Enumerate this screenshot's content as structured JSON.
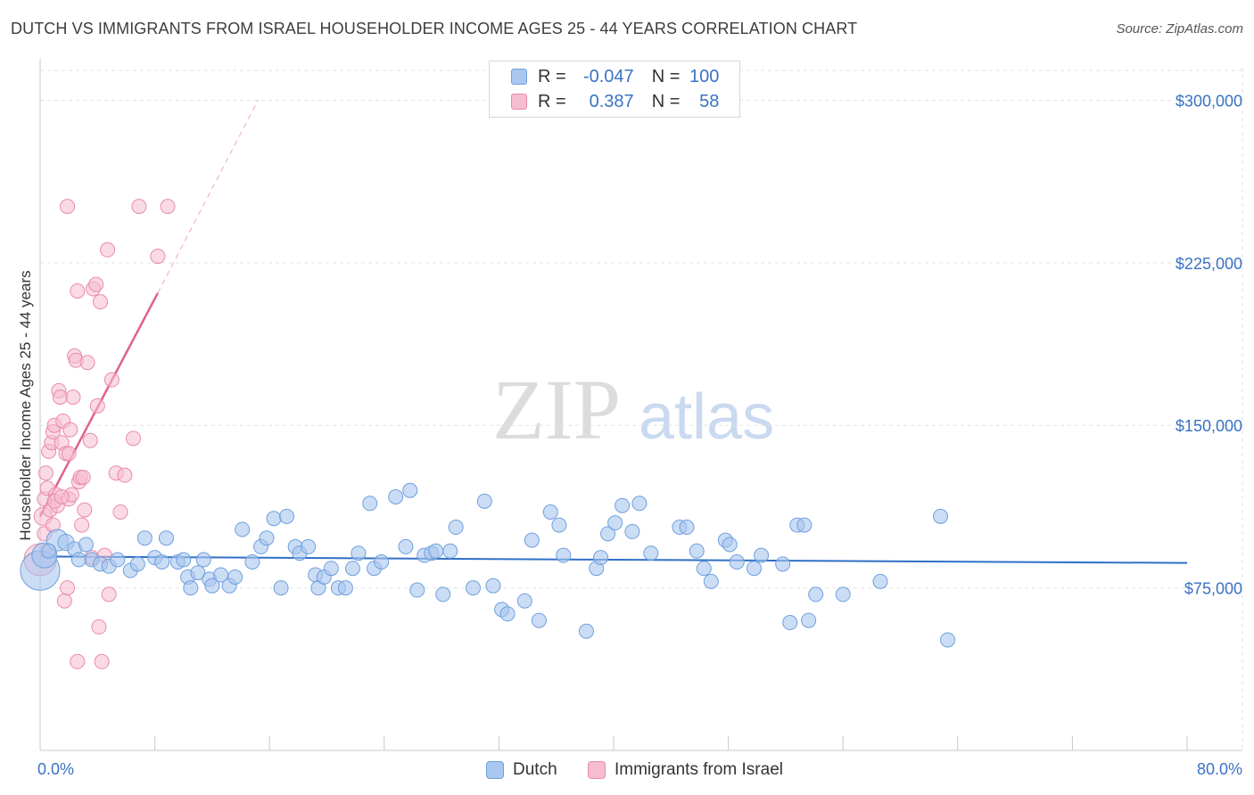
{
  "title": "DUTCH VS IMMIGRANTS FROM ISRAEL HOUSEHOLDER INCOME AGES 25 - 44 YEARS CORRELATION CHART",
  "source": "Source: ZipAtlas.com",
  "watermark": {
    "zip": "ZIP",
    "atlas": "atlas"
  },
  "legend": {
    "r_label": "R =",
    "n_label": "N =",
    "dutch": {
      "r": "-0.047",
      "n": "100"
    },
    "israel": {
      "r": "0.387",
      "n": "58"
    }
  },
  "colors": {
    "dutch_fill": "#a9c7ef",
    "dutch_stroke": "#6f9fde",
    "dutch_line": "#2f6fc6",
    "israel_fill": "#f6bcd0",
    "israel_stroke": "#e98bab",
    "israel_line": "#e0608f",
    "axis_text": "#3a72c4",
    "grid": "#e2e2e2"
  },
  "chart_data": {
    "type": "scatter",
    "title": "DUTCH VS IMMIGRANTS FROM ISRAEL HOUSEHOLDER INCOME AGES 25 - 44 YEARS CORRELATION CHART",
    "xlabel": "",
    "ylabel": "Householder Income Ages 25 - 44 years",
    "xlim": [
      0,
      80
    ],
    "ylim": [
      0,
      315000
    ],
    "x_tick_labels": [
      "0.0%",
      "80.0%"
    ],
    "y_ticks": [
      {
        "value": 75000,
        "label": "$75,000"
      },
      {
        "value": 150000,
        "label": "$150,000"
      },
      {
        "value": 225000,
        "label": "$225,000"
      },
      {
        "value": 300000,
        "label": "$300,000"
      }
    ],
    "series": [
      {
        "name": "Dutch",
        "r": -0.047,
        "n": 100,
        "trend": {
          "x": [
            0,
            80
          ],
          "y": [
            89500,
            86500
          ],
          "dashed_extension": false
        },
        "points": [
          [
            0.0,
            83000,
            22
          ],
          [
            0.3,
            90000,
            14
          ],
          [
            1.2,
            97000,
            12
          ],
          [
            1.8,
            96000,
            9
          ],
          [
            2.4,
            93000,
            8
          ],
          [
            3.2,
            95000,
            8
          ],
          [
            3.6,
            88000,
            8
          ],
          [
            4.2,
            86000,
            8
          ],
          [
            4.8,
            85000,
            8
          ],
          [
            5.4,
            88000,
            8
          ],
          [
            6.3,
            83000,
            8
          ],
          [
            6.8,
            86000,
            8
          ],
          [
            7.3,
            98000,
            8
          ],
          [
            8.0,
            89000,
            8
          ],
          [
            8.5,
            87000,
            8
          ],
          [
            8.8,
            98000,
            8
          ],
          [
            9.6,
            87000,
            8
          ],
          [
            10.0,
            88000,
            8
          ],
          [
            10.3,
            80000,
            8
          ],
          [
            10.5,
            75000,
            8
          ],
          [
            11.0,
            82000,
            8
          ],
          [
            11.4,
            88000,
            8
          ],
          [
            11.8,
            79000,
            8
          ],
          [
            12.0,
            76000,
            8
          ],
          [
            12.6,
            81000,
            8
          ],
          [
            13.2,
            76000,
            8
          ],
          [
            13.6,
            80000,
            8
          ],
          [
            14.1,
            102000,
            8
          ],
          [
            14.8,
            87000,
            8
          ],
          [
            15.4,
            94000,
            8
          ],
          [
            15.8,
            98000,
            8
          ],
          [
            16.3,
            107000,
            8
          ],
          [
            16.8,
            75000,
            8
          ],
          [
            17.2,
            108000,
            8
          ],
          [
            17.8,
            94000,
            8
          ],
          [
            18.1,
            91000,
            8
          ],
          [
            18.7,
            94000,
            8
          ],
          [
            19.2,
            81000,
            8
          ],
          [
            19.4,
            75000,
            8
          ],
          [
            19.8,
            80000,
            8
          ],
          [
            20.3,
            84000,
            8
          ],
          [
            20.8,
            75000,
            8
          ],
          [
            21.3,
            75000,
            8
          ],
          [
            21.8,
            84000,
            8
          ],
          [
            22.2,
            91000,
            8
          ],
          [
            23.0,
            114000,
            8
          ],
          [
            23.3,
            84000,
            8
          ],
          [
            23.8,
            87000,
            8
          ],
          [
            24.8,
            117000,
            8
          ],
          [
            25.5,
            94000,
            8
          ],
          [
            25.8,
            120000,
            8
          ],
          [
            26.3,
            74000,
            8
          ],
          [
            26.8,
            90000,
            8
          ],
          [
            27.3,
            91000,
            8
          ],
          [
            27.6,
            92000,
            8
          ],
          [
            28.1,
            72000,
            8
          ],
          [
            28.6,
            92000,
            8
          ],
          [
            29.0,
            103000,
            8
          ],
          [
            30.2,
            75000,
            8
          ],
          [
            31.0,
            115000,
            8
          ],
          [
            31.6,
            76000,
            8
          ],
          [
            32.2,
            65000,
            8
          ],
          [
            32.6,
            63000,
            8
          ],
          [
            33.8,
            69000,
            8
          ],
          [
            34.3,
            97000,
            8
          ],
          [
            34.8,
            60000,
            8
          ],
          [
            35.6,
            110000,
            8
          ],
          [
            36.2,
            104000,
            8
          ],
          [
            36.5,
            90000,
            8
          ],
          [
            38.1,
            55000,
            8
          ],
          [
            38.8,
            84000,
            8
          ],
          [
            39.1,
            89000,
            8
          ],
          [
            39.6,
            100000,
            8
          ],
          [
            40.1,
            105000,
            8
          ],
          [
            40.6,
            113000,
            8
          ],
          [
            41.3,
            101000,
            8
          ],
          [
            41.8,
            114000,
            8
          ],
          [
            42.6,
            91000,
            8
          ],
          [
            44.6,
            103000,
            8
          ],
          [
            45.1,
            103000,
            8
          ],
          [
            45.8,
            92000,
            8
          ],
          [
            46.3,
            84000,
            8
          ],
          [
            46.8,
            78000,
            8
          ],
          [
            47.8,
            97000,
            8
          ],
          [
            48.1,
            95000,
            8
          ],
          [
            48.6,
            87000,
            8
          ],
          [
            49.8,
            84000,
            8
          ],
          [
            50.3,
            90000,
            8
          ],
          [
            51.8,
            86000,
            8
          ],
          [
            52.3,
            59000,
            8
          ],
          [
            52.8,
            104000,
            8
          ],
          [
            53.3,
            104000,
            8
          ],
          [
            53.6,
            60000,
            8
          ],
          [
            54.1,
            72000,
            8
          ],
          [
            56.0,
            72000,
            8
          ],
          [
            58.6,
            78000,
            8
          ],
          [
            62.8,
            108000,
            8
          ],
          [
            63.3,
            51000,
            8
          ],
          [
            0.6,
            92000,
            8
          ],
          [
            2.7,
            88000,
            8
          ]
        ]
      },
      {
        "name": "Immigrants from Israel",
        "r": 0.387,
        "n": 58,
        "trend": {
          "x": [
            0,
            8.2
          ],
          "y": [
            108000,
            211000
          ],
          "dashed_to": [
            15.2,
            300000
          ]
        },
        "points": [
          [
            0.0,
            88000,
            18
          ],
          [
            0.2,
            108000,
            10
          ],
          [
            0.3,
            116000,
            8
          ],
          [
            0.3,
            100000,
            8
          ],
          [
            0.4,
            128000,
            8
          ],
          [
            0.5,
            121000,
            8
          ],
          [
            0.6,
            138000,
            8
          ],
          [
            0.7,
            111000,
            8
          ],
          [
            0.8,
            142000,
            8
          ],
          [
            0.9,
            147000,
            8
          ],
          [
            1.0,
            150000,
            8
          ],
          [
            1.1,
            118000,
            8
          ],
          [
            1.2,
            113000,
            8
          ],
          [
            1.3,
            166000,
            8
          ],
          [
            1.4,
            163000,
            8
          ],
          [
            1.5,
            142000,
            8
          ],
          [
            1.6,
            152000,
            8
          ],
          [
            1.7,
            69000,
            8
          ],
          [
            1.8,
            137000,
            8
          ],
          [
            1.9,
            251000,
            8
          ],
          [
            1.9,
            75000,
            8
          ],
          [
            2.0,
            116000,
            8
          ],
          [
            2.1,
            148000,
            8
          ],
          [
            2.2,
            118000,
            8
          ],
          [
            2.3,
            163000,
            8
          ],
          [
            2.4,
            182000,
            8
          ],
          [
            2.5,
            180000,
            8
          ],
          [
            2.6,
            212000,
            8
          ],
          [
            2.6,
            41000,
            8
          ],
          [
            2.7,
            124000,
            8
          ],
          [
            2.8,
            126000,
            8
          ],
          [
            2.9,
            104000,
            8
          ],
          [
            3.0,
            126000,
            8
          ],
          [
            3.1,
            111000,
            8
          ],
          [
            3.3,
            179000,
            8
          ],
          [
            3.5,
            143000,
            8
          ],
          [
            3.6,
            89000,
            8
          ],
          [
            3.7,
            213000,
            8
          ],
          [
            3.9,
            215000,
            8
          ],
          [
            4.0,
            159000,
            8
          ],
          [
            4.1,
            57000,
            8
          ],
          [
            4.2,
            207000,
            8
          ],
          [
            4.3,
            41000,
            8
          ],
          [
            4.5,
            90000,
            8
          ],
          [
            4.7,
            231000,
            8
          ],
          [
            4.8,
            72000,
            8
          ],
          [
            5.0,
            171000,
            8
          ],
          [
            5.3,
            128000,
            8
          ],
          [
            5.6,
            110000,
            8
          ],
          [
            5.9,
            127000,
            8
          ],
          [
            6.5,
            144000,
            8
          ],
          [
            6.9,
            251000,
            8
          ],
          [
            8.2,
            228000,
            8
          ],
          [
            8.9,
            251000,
            8
          ],
          [
            1.0,
            115000,
            8
          ],
          [
            0.9,
            104000,
            8
          ],
          [
            1.5,
            117000,
            8
          ],
          [
            2.0,
            137000,
            8
          ]
        ]
      }
    ]
  },
  "bottom_legend": {
    "dutch": "Dutch",
    "israel": "Immigrants from Israel"
  }
}
